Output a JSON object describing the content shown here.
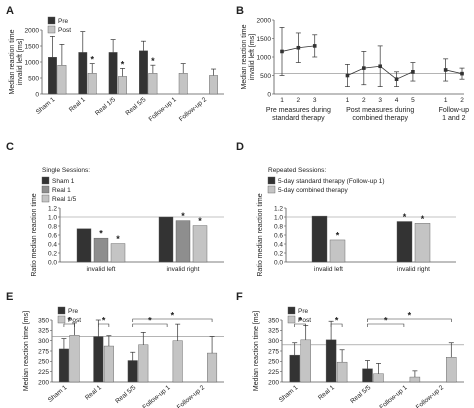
{
  "colors": {
    "dark": "#333333",
    "light": "#c4c4c4",
    "mid": "#8e8e8e",
    "axis": "#555555",
    "ref": "#888888"
  },
  "chart_data": [
    {
      "panel": "A",
      "type": "bar",
      "ylabel": "Median reaction time\ninvalid left [ms]",
      "ylim": [
        0,
        2000
      ],
      "yticks": [
        0,
        500,
        1000,
        1500,
        2000
      ],
      "categories": [
        "Sham 1",
        "Real 1",
        "Real 1/5",
        "Real 5/5",
        "Follow-up 1",
        "Follow-up 2"
      ],
      "series": [
        {
          "name": "Pre",
          "values": [
            1150,
            1300,
            1300,
            1350,
            null,
            null
          ],
          "errors": [
            650,
            650,
            400,
            300,
            null,
            null
          ]
        },
        {
          "name": "Post",
          "values": [
            900,
            650,
            550,
            650,
            650,
            580
          ],
          "errors": [
            650,
            300,
            250,
            250,
            300,
            200
          ]
        }
      ],
      "stars": [
        {
          "category": 1,
          "series": 1
        },
        {
          "category": 2,
          "series": 1
        },
        {
          "category": 3,
          "series": 1
        }
      ],
      "legend": [
        "Pre",
        "Post"
      ]
    },
    {
      "panel": "B",
      "type": "line",
      "ylabel": "Median reaction time\ninvalid left [ms]",
      "ylim": [
        0,
        2000
      ],
      "yticks": [
        0,
        500,
        1000,
        1500,
        2000
      ],
      "reference": 550,
      "groups": [
        {
          "label": "Pre measures during\nstandard therapy",
          "x": [
            "1",
            "2",
            "3"
          ],
          "values": [
            1150,
            1250,
            1300
          ],
          "errors": [
            650,
            400,
            300
          ]
        },
        {
          "label": "Post measures during\ncombined therapy",
          "x": [
            "1",
            "2",
            "3",
            "4",
            "5"
          ],
          "values": [
            500,
            700,
            750,
            400,
            600
          ],
          "errors": [
            300,
            450,
            550,
            200,
            250
          ]
        },
        {
          "label": "Follow-up\n1 and 2",
          "x": [
            "1",
            "2"
          ],
          "values": [
            650,
            550
          ],
          "errors": [
            300,
            150
          ]
        }
      ]
    },
    {
      "panel": "C",
      "type": "bar",
      "ylabel": "Ratio median reaction time",
      "ylim": [
        0,
        1.2
      ],
      "yticks": [
        0,
        0.2,
        0.4,
        0.6,
        0.8,
        1.0,
        1.2
      ],
      "reference": 1.0,
      "categories": [
        "invalid left",
        "invalid right"
      ],
      "series": [
        {
          "name": "Sham 1",
          "values": [
            0.74,
            1.0
          ]
        },
        {
          "name": "Real 1",
          "values": [
            0.53,
            0.92
          ]
        },
        {
          "name": "Real 1/5",
          "values": [
            0.41,
            0.81
          ]
        }
      ],
      "stars": [
        {
          "category": 0,
          "series": 1
        },
        {
          "category": 0,
          "series": 2
        },
        {
          "category": 1,
          "series": 1
        },
        {
          "category": 1,
          "series": 2
        }
      ],
      "legend_title": "Single Sessions:",
      "legend": [
        "Sham 1",
        "Real 1",
        "Real 1/5"
      ]
    },
    {
      "panel": "D",
      "type": "bar",
      "ylabel": "Ratio median reaction time",
      "ylim": [
        0,
        1.2
      ],
      "yticks": [
        0,
        0.2,
        0.4,
        0.6,
        0.8,
        1.0,
        1.2
      ],
      "reference": 1.0,
      "categories": [
        "invalid left",
        "invalid right"
      ],
      "series": [
        {
          "name": "5-day standard therapy (Follow-up 1)",
          "values": [
            1.02,
            0.9
          ]
        },
        {
          "name": "5-day combined therapy",
          "values": [
            0.49,
            0.86
          ]
        }
      ],
      "stars": [
        {
          "category": 0,
          "series": 1
        },
        {
          "category": 1,
          "series": 0
        },
        {
          "category": 1,
          "series": 1
        }
      ],
      "legend_title": "Repeated Sessions:",
      "legend": [
        "5-day standard therapy (Follow-up 1)",
        "5-day combined therapy"
      ]
    },
    {
      "panel": "E",
      "type": "bar",
      "ylabel": "Median reaction time [ms]",
      "ylim": [
        200,
        350
      ],
      "yticks": [
        200,
        225,
        250,
        275,
        300,
        325,
        350
      ],
      "reference": 310,
      "categories": [
        "Sham 1",
        "Real 1",
        "Real 5/5",
        "Follow-up 1",
        "Follow-up 2"
      ],
      "series": [
        {
          "name": "Pre",
          "values": [
            280,
            310,
            252,
            null,
            null
          ],
          "errors": [
            25,
            40,
            20,
            null,
            null
          ]
        },
        {
          "name": "Post",
          "values": [
            313,
            287,
            290,
            300,
            270
          ],
          "errors": [
            30,
            25,
            30,
            40,
            40
          ]
        }
      ],
      "brackets": [
        {
          "from": 0,
          "to": 1,
          "ofs": 0
        },
        {
          "from": 2,
          "to": 3,
          "ofs": 0
        },
        {
          "from": 4,
          "to": 6,
          "ofs": 0
        },
        {
          "from": 4,
          "to": 9,
          "ofs": 1
        }
      ],
      "legend": [
        "Pre",
        "Post"
      ]
    },
    {
      "panel": "F",
      "type": "bar",
      "ylabel": "Median reaction time [ms]",
      "ylim": [
        200,
        350
      ],
      "yticks": [
        200,
        225,
        250,
        275,
        300,
        325,
        350
      ],
      "reference": 290,
      "categories": [
        "Sham 1",
        "Real 1",
        "Real 5/5",
        "Follow-up 1",
        "Follow-up 2"
      ],
      "series": [
        {
          "name": "Pre",
          "values": [
            265,
            302,
            232,
            null,
            null
          ],
          "errors": [
            30,
            45,
            20,
            null,
            null
          ]
        },
        {
          "name": "Post",
          "values": [
            302,
            248,
            220,
            212,
            260
          ],
          "errors": [
            35,
            30,
            25,
            15,
            35
          ]
        }
      ],
      "brackets": [
        {
          "from": 0,
          "to": 1,
          "ofs": 0
        },
        {
          "from": 2,
          "to": 3,
          "ofs": 0
        },
        {
          "from": 4,
          "to": 6,
          "ofs": 0
        },
        {
          "from": 4,
          "to": 9,
          "ofs": 1
        }
      ],
      "legend": [
        "Pre",
        "Post"
      ]
    }
  ]
}
